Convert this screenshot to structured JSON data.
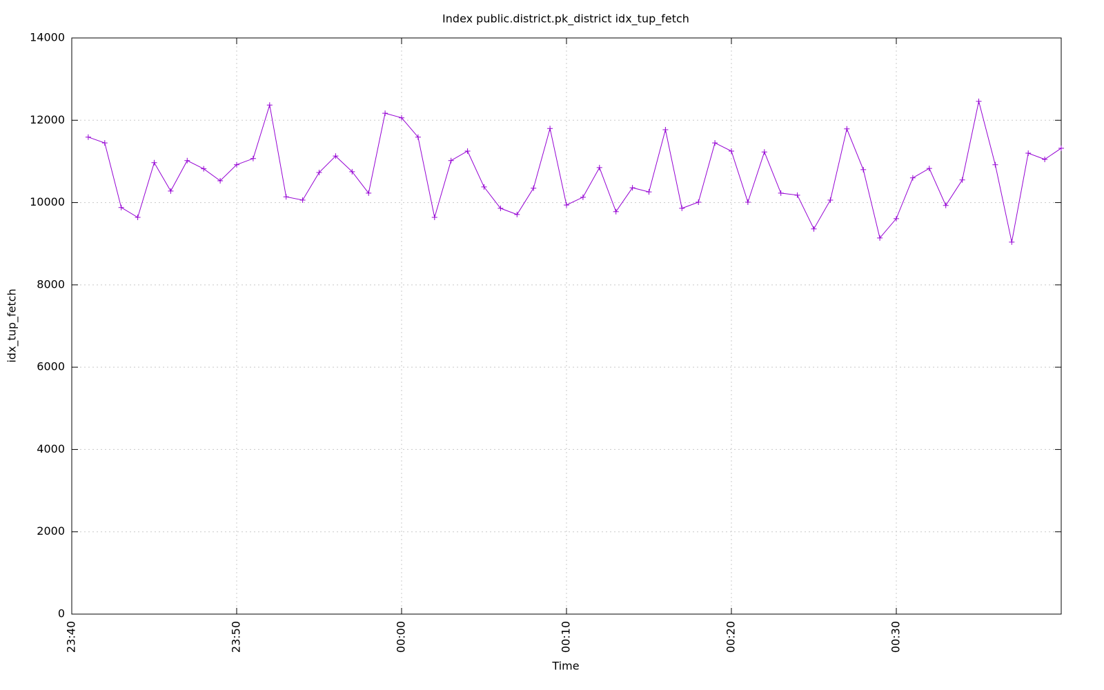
{
  "chart_data": {
    "type": "line",
    "title": "Index public.district.pk_district idx_tup_fetch",
    "x_label": "Time",
    "y_label": "idx_tup_fetch",
    "x": [
      "23:41",
      "23:42",
      "23:43",
      "23:44",
      "23:45",
      "23:46",
      "23:47",
      "23:48",
      "23:49",
      "23:50",
      "23:51",
      "23:52",
      "23:53",
      "23:54",
      "23:55",
      "23:56",
      "23:57",
      "23:58",
      "23:59",
      "00:00",
      "00:01",
      "00:02",
      "00:03",
      "00:04",
      "00:05",
      "00:06",
      "00:07",
      "00:08",
      "00:09",
      "00:10",
      "00:11",
      "00:12",
      "00:13",
      "00:14",
      "00:15",
      "00:16",
      "00:17",
      "00:18",
      "00:19",
      "00:20",
      "00:21",
      "00:22",
      "00:23",
      "00:24",
      "00:25",
      "00:26",
      "00:27",
      "00:28",
      "00:29",
      "00:30",
      "00:31",
      "00:32",
      "00:33",
      "00:34",
      "00:35",
      "00:36",
      "00:37",
      "00:38",
      "00:39",
      "00:40"
    ],
    "series": [
      {
        "name": "idx_tup_fetch",
        "color": "#9400d3",
        "values": [
          11590,
          11450,
          9880,
          9640,
          10970,
          10280,
          11020,
          10820,
          10530,
          10920,
          11070,
          12370,
          10140,
          10060,
          10730,
          11130,
          10750,
          10230,
          12170,
          12060,
          11590,
          9640,
          11020,
          11250,
          10380,
          9860,
          9710,
          10350,
          11800,
          9940,
          10130,
          10850,
          9780,
          10360,
          10260,
          11770,
          9860,
          10010,
          11450,
          11250,
          10010,
          11230,
          10230,
          10180,
          9360,
          10060,
          11790,
          10800,
          9140,
          9610,
          10600,
          10830,
          9930,
          10550,
          12460,
          10920,
          9040,
          11200,
          11050,
          11320
        ]
      }
    ],
    "xlim": [
      "23:40",
      "00:40"
    ],
    "xticks": [
      "23:40",
      "23:50",
      "00:00",
      "00:10",
      "00:20",
      "00:30"
    ],
    "ylim": [
      0,
      14000
    ],
    "yticks": [
      0,
      2000,
      4000,
      6000,
      8000,
      10000,
      12000,
      14000
    ],
    "grid": true
  }
}
